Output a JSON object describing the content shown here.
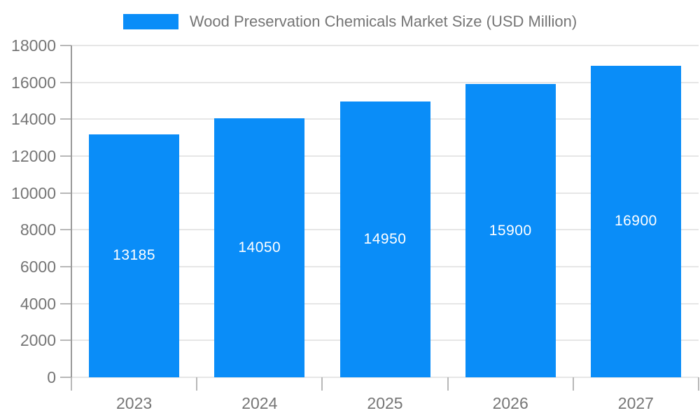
{
  "chart_data": {
    "type": "bar",
    "title": "Wood Preservation Chemicals Market Size (USD Million)",
    "categories": [
      "2023",
      "2024",
      "2025",
      "2026",
      "2027"
    ],
    "values": [
      13185,
      14050,
      14950,
      15900,
      16900
    ],
    "xlabel": "",
    "ylabel": "",
    "ylim": [
      0,
      18000
    ],
    "ytick_step": 2000,
    "yticks": [
      0,
      2000,
      4000,
      6000,
      8000,
      10000,
      12000,
      14000,
      16000,
      18000
    ],
    "grid": true,
    "bar_value_labels": true,
    "legend_position": "top",
    "colors": {
      "bar": "#0A8DF8",
      "bar_label": "#FFFFFF",
      "axis_text": "#757575",
      "grid_line": "#E6E6E6",
      "axis_line": "#999999",
      "tick_line": "#B8B8B8",
      "background": "#FFFFFF"
    }
  }
}
